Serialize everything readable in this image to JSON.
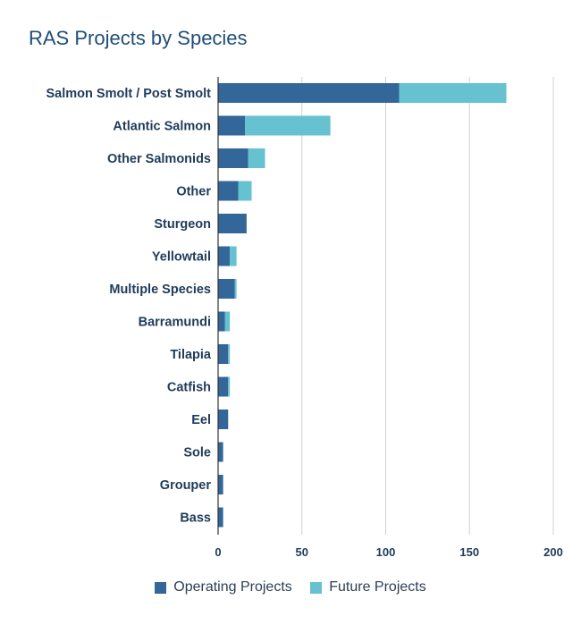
{
  "chart_data": {
    "type": "bar",
    "orientation": "horizontal",
    "stacked": true,
    "title": "RAS Projects by Species",
    "xlabel": "",
    "ylabel": "",
    "categories": [
      "Salmon Smolt / Post Smolt",
      "Atlantic Salmon",
      "Other Salmonids",
      "Other",
      "Sturgeon",
      "Yellowtail",
      "Multiple Species",
      "Barramundi",
      "Tilapia",
      "Catfish",
      "Eel",
      "Sole",
      "Grouper",
      "Bass"
    ],
    "series": [
      {
        "name": "Operating Projects",
        "color": "#336699",
        "values": [
          108,
          16,
          18,
          12,
          17,
          7,
          10,
          4,
          6,
          6,
          6,
          3,
          3,
          3
        ]
      },
      {
        "name": "Future Projects",
        "color": "#66c1d1",
        "values": [
          64,
          51,
          10,
          8,
          0,
          4,
          1,
          3,
          1,
          1,
          0,
          0,
          0,
          0
        ]
      }
    ],
    "xlim": [
      0,
      200
    ],
    "xticks": [
      0,
      50,
      100,
      150,
      200
    ],
    "grid": true,
    "legend_position": "bottom"
  }
}
